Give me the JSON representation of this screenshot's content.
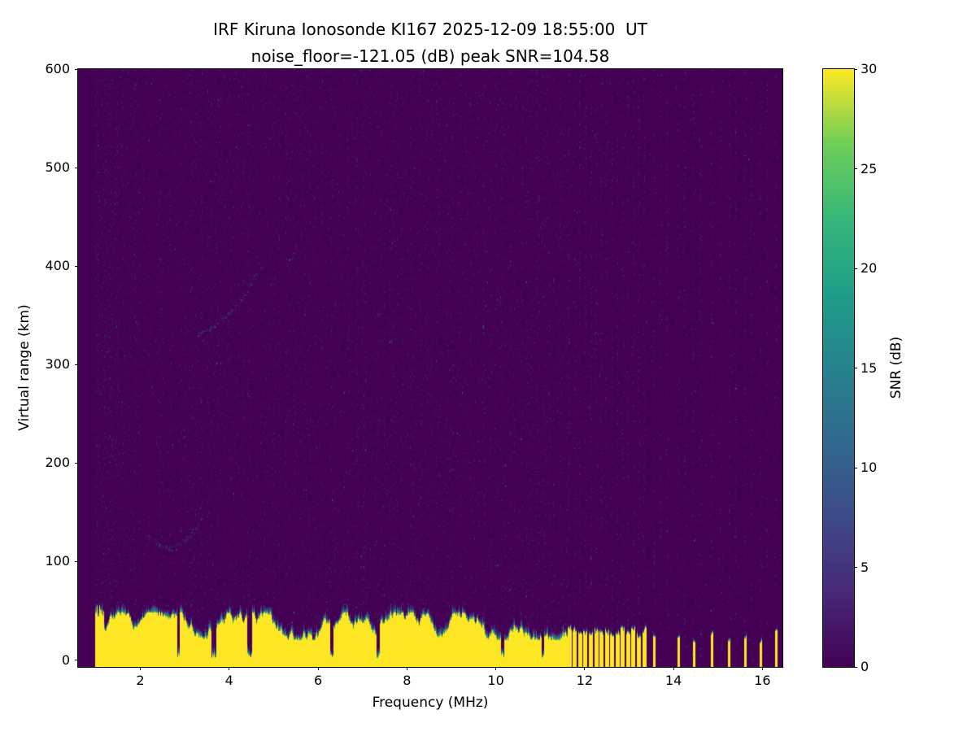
{
  "chart_data": {
    "type": "heatmap",
    "title": "IRF Kiruna Ionosonde KI167 2025-12-09 18:55:00  UT",
    "subtitle": "noise_floor=-121.05 (dB) peak SNR=104.58",
    "station": "IRF Kiruna Ionosonde KI167",
    "timestamp_ut": "2025-12-09 18:55:00 UT",
    "noise_floor_db": -121.05,
    "peak_snr_db": 104.58,
    "xlabel": "Frequency (MHz)",
    "ylabel": "Virtual range (km)",
    "colorbar_label": "SNR (dB)",
    "colormap": "viridis",
    "xlim": [
      0.6,
      16.45
    ],
    "ylim": [
      -7,
      600
    ],
    "clim": [
      0,
      30
    ],
    "x_ticks": [
      2,
      4,
      6,
      8,
      10,
      12,
      14,
      16
    ],
    "y_ticks": [
      0,
      100,
      200,
      300,
      400,
      500,
      600
    ],
    "colorbar_ticks": [
      0,
      5,
      10,
      15,
      20,
      25,
      30
    ],
    "data_freq_range_mhz": [
      1.0,
      16.4
    ],
    "features": {
      "background_noise_db_range": [
        0,
        8
      ],
      "ground_clutter": {
        "freq_range_mhz": [
          1.0,
          11.62
        ],
        "top_km_mean": 30,
        "top_km_jitter": 12,
        "snr_db": 30
      },
      "clutter_notches_mhz": [
        2.85,
        3.65,
        4.45,
        6.3,
        7.35,
        10.15,
        11.05
      ],
      "interference_comb_mhz": {
        "start": 11.65,
        "end": 13.4,
        "step": 0.12
      },
      "interference_bars_mhz": [
        13.55,
        14.1,
        14.45,
        14.85,
        15.25,
        15.6,
        15.95,
        16.3
      ],
      "interference_noise_stripes_mhz": [
        13.7,
        13.85,
        14.25,
        14.6,
        15.05,
        15.4,
        15.75,
        16.1
      ],
      "echo_traces": [
        {
          "name": "E-region echo",
          "points_mhz_km": [
            [
              2.15,
              126
            ],
            [
              2.45,
              117
            ],
            [
              2.7,
              113
            ],
            [
              3.0,
              121
            ],
            [
              3.2,
              132
            ],
            [
              3.45,
              148
            ]
          ]
        },
        {
          "name": "F-region echo",
          "points_mhz_km": [
            [
              3.3,
              332
            ],
            [
              3.55,
              337
            ],
            [
              3.8,
              345
            ],
            [
              4.05,
              356
            ],
            [
              4.3,
              369
            ],
            [
              4.5,
              383
            ],
            [
              4.62,
              394
            ]
          ]
        },
        {
          "name": "F-region echo upper segment",
          "points_mhz_km": [
            [
              5.25,
              400
            ],
            [
              5.42,
              411
            ],
            [
              5.52,
              423
            ]
          ]
        }
      ]
    }
  }
}
